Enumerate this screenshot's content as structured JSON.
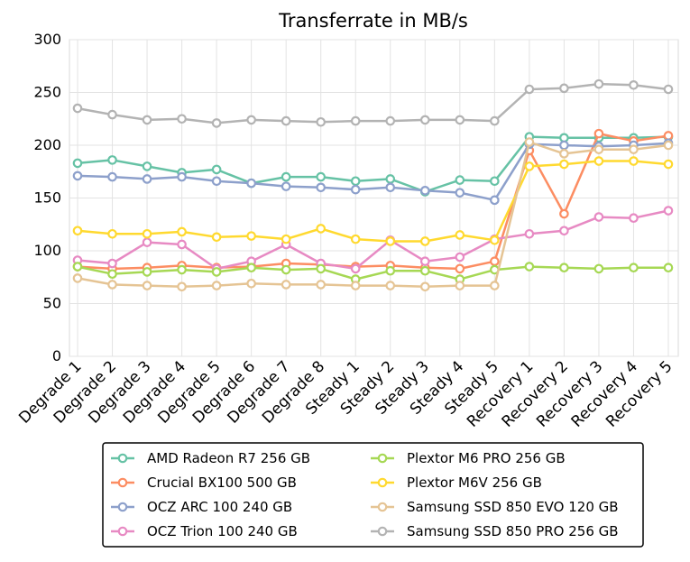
{
  "chart_data": {
    "type": "line",
    "title": "Transferrate in MB/s",
    "xlabel": "",
    "ylabel": "",
    "ylim": [
      0,
      300
    ],
    "yticks": [
      0,
      50,
      100,
      150,
      200,
      250,
      300
    ],
    "grid": true,
    "legend_position": "bottom",
    "categories": [
      "Degrade 1",
      "Degrade 2",
      "Degrade 3",
      "Degrade 4",
      "Degrade 5",
      "Degrade 6",
      "Degrade 7",
      "Degrade 8",
      "Steady 1",
      "Steady 2",
      "Steady 3",
      "Steady 4",
      "Steady 5",
      "Recovery 1",
      "Recovery 2",
      "Recovery 3",
      "Recovery 4",
      "Recovery 5"
    ],
    "series": [
      {
        "name": "AMD Radeon R7 256 GB",
        "color": "#66c2a5",
        "values": [
          183,
          186,
          180,
          174,
          177,
          164,
          170,
          170,
          166,
          168,
          156,
          167,
          166,
          208,
          207,
          207,
          207,
          208
        ]
      },
      {
        "name": "Crucial BX100 500 GB",
        "color": "#fc8d62",
        "values": [
          85,
          83,
          84,
          86,
          84,
          85,
          88,
          87,
          85,
          86,
          84,
          83,
          90,
          195,
          135,
          211,
          204,
          209
        ]
      },
      {
        "name": "OCZ ARC 100 240 GB",
        "color": "#8da0cb",
        "values": [
          171,
          170,
          168,
          170,
          166,
          164,
          161,
          160,
          158,
          160,
          157,
          155,
          148,
          201,
          200,
          199,
          200,
          202
        ]
      },
      {
        "name": "OCZ Trion 100 240 GB",
        "color": "#e78ac3",
        "values": [
          91,
          88,
          108,
          106,
          83,
          90,
          106,
          88,
          83,
          110,
          90,
          94,
          111,
          116,
          119,
          132,
          131,
          138
        ]
      },
      {
        "name": "Plextor M6 PRO 256 GB",
        "color": "#a6d854",
        "values": [
          85,
          78,
          80,
          82,
          80,
          84,
          82,
          83,
          73,
          81,
          81,
          73,
          82,
          85,
          84,
          83,
          84,
          84
        ]
      },
      {
        "name": "Plextor M6V 256 GB",
        "color": "#ffd92f",
        "values": [
          119,
          116,
          116,
          118,
          113,
          114,
          111,
          121,
          111,
          109,
          109,
          115,
          110,
          180,
          182,
          185,
          185,
          182
        ]
      },
      {
        "name": "Samsung SSD 850 EVO 120 GB",
        "color": "#e5c494",
        "values": [
          74,
          68,
          67,
          66,
          67,
          69,
          68,
          68,
          67,
          67,
          66,
          67,
          67,
          203,
          192,
          196,
          196,
          200
        ]
      },
      {
        "name": "Samsung SSD 850 PRO 256 GB",
        "color": "#b3b3b3",
        "values": [
          235,
          229,
          224,
          225,
          221,
          224,
          223,
          222,
          223,
          223,
          224,
          224,
          223,
          253,
          254,
          258,
          257,
          253
        ]
      }
    ]
  }
}
